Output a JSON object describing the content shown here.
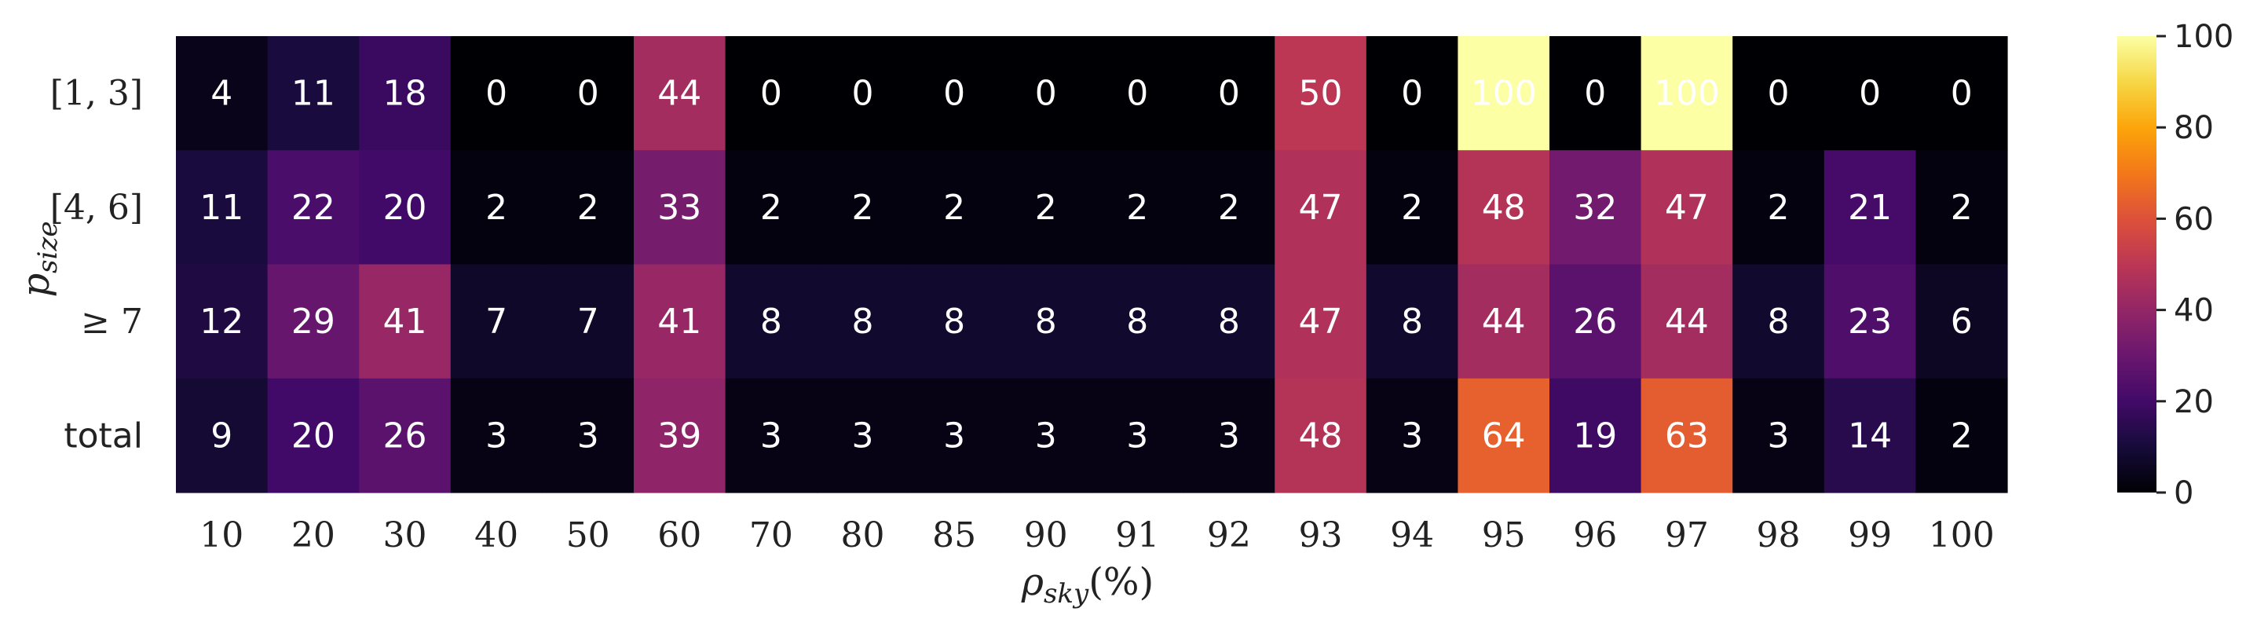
{
  "chart_data": {
    "type": "heatmap",
    "colormap": "inferno",
    "xlabel": "ρsky(%)",
    "ylabel": "psize",
    "x_categories": [
      "10",
      "20",
      "30",
      "40",
      "50",
      "60",
      "70",
      "80",
      "85",
      "90",
      "91",
      "92",
      "93",
      "94",
      "95",
      "96",
      "97",
      "98",
      "99",
      "100"
    ],
    "y_categories": [
      "[1, 3]",
      "[4, 6]",
      "≥ 7",
      "total"
    ],
    "values": [
      [
        4,
        11,
        18,
        0,
        0,
        44,
        0,
        0,
        0,
        0,
        0,
        0,
        50,
        0,
        100,
        0,
        100,
        0,
        0,
        0
      ],
      [
        11,
        22,
        20,
        2,
        2,
        33,
        2,
        2,
        2,
        2,
        2,
        2,
        47,
        2,
        48,
        32,
        47,
        2,
        21,
        2
      ],
      [
        12,
        29,
        41,
        7,
        7,
        41,
        8,
        8,
        8,
        8,
        8,
        8,
        47,
        8,
        44,
        26,
        44,
        8,
        23,
        6
      ],
      [
        9,
        20,
        26,
        3,
        3,
        39,
        3,
        3,
        3,
        3,
        3,
        3,
        48,
        3,
        64,
        19,
        63,
        3,
        14,
        2
      ]
    ],
    "colorbar": {
      "range": [
        0,
        100
      ],
      "ticks": [
        "0",
        "20",
        "40",
        "60",
        "80",
        "100"
      ]
    }
  }
}
